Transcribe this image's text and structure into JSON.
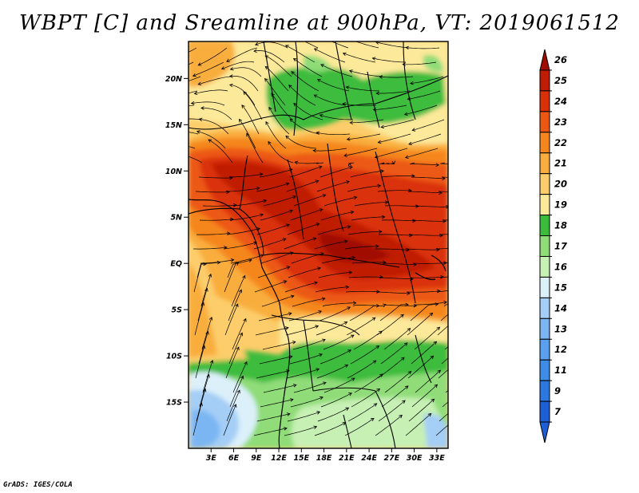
{
  "title": "WBPT [C] and Sreamline at 900hPa, VT: 2019061512",
  "footer": "GrADS: IGES/COLA",
  "colors": {
    "c7": "#1e5fd6",
    "c9": "#2a78e0",
    "c11": "#3c8ce8",
    "c12": "#5aa0ee",
    "c13": "#7cb6f2",
    "c14": "#a4cef6",
    "c15": "#dcf0fa",
    "c16": "#c6f0b4",
    "c17": "#8fdc78",
    "c18": "#3cbc3c",
    "c19": "#fce99a",
    "c20": "#fccd6a",
    "c21": "#f9ad3c",
    "c22": "#f5861e",
    "c23": "#ec5812",
    "c24": "#da3008",
    "c25": "#c01c04",
    "c26": "#a00c02"
  },
  "map": {
    "lat_range": [
      -20,
      24
    ],
    "lon_range": [
      0,
      34.5
    ],
    "lat_ticks": [
      {
        "value": 20,
        "label": "20N"
      },
      {
        "value": 15,
        "label": "15N"
      },
      {
        "value": 10,
        "label": "10N"
      },
      {
        "value": 5,
        "label": "5N"
      },
      {
        "value": 0,
        "label": "EQ"
      },
      {
        "value": -5,
        "label": "5S"
      },
      {
        "value": -10,
        "label": "10S"
      },
      {
        "value": -15,
        "label": "15S"
      }
    ],
    "lon_ticks": [
      {
        "value": 3,
        "label": "3E"
      },
      {
        "value": 6,
        "label": "6E"
      },
      {
        "value": 9,
        "label": "9E"
      },
      {
        "value": 12,
        "label": "12E"
      },
      {
        "value": 15,
        "label": "15E"
      },
      {
        "value": 18,
        "label": "18E"
      },
      {
        "value": 21,
        "label": "21E"
      },
      {
        "value": 24,
        "label": "24E"
      },
      {
        "value": 27,
        "label": "27E"
      },
      {
        "value": 30,
        "label": "30E"
      },
      {
        "value": 33,
        "label": "33E"
      }
    ]
  },
  "colorbar": {
    "levels": [
      {
        "label": "26",
        "color": "#a00c02"
      },
      {
        "label": "25",
        "color": "#c01c04"
      },
      {
        "label": "24",
        "color": "#da3008"
      },
      {
        "label": "23",
        "color": "#ec5812"
      },
      {
        "label": "22",
        "color": "#f5861e"
      },
      {
        "label": "21",
        "color": "#f9ad3c"
      },
      {
        "label": "20",
        "color": "#fccd6a"
      },
      {
        "label": "19",
        "color": "#fce99a"
      },
      {
        "label": "18",
        "color": "#3cbc3c"
      },
      {
        "label": "17",
        "color": "#8fdc78"
      },
      {
        "label": "16",
        "color": "#c6f0b4"
      },
      {
        "label": "15",
        "color": "#dcf0fa"
      },
      {
        "label": "14",
        "color": "#a4cef6"
      },
      {
        "label": "13",
        "color": "#7cb6f2"
      },
      {
        "label": "12",
        "color": "#5aa0ee"
      },
      {
        "label": "11",
        "color": "#3c8ce8"
      },
      {
        "label": "9",
        "color": "#2a78e0"
      },
      {
        "label": "7",
        "color": "#1e5fd6"
      }
    ],
    "bottom_color": "#1e5fd6"
  }
}
